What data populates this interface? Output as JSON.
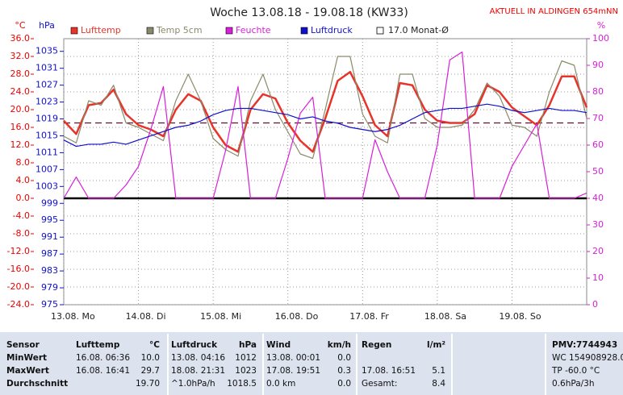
{
  "chart_data": {
    "type": "line",
    "title": "Woche 13.08.18 - 19.08.18 (KW33)",
    "subtitle": "AKTUELL IN ALDINGEN 654mNN",
    "y_label": "°C",
    "y2_label": "hPa",
    "y3_label": "%",
    "x": [
      0,
      4,
      8,
      12,
      16,
      20,
      24,
      28,
      32,
      36,
      40,
      44,
      48,
      52,
      56,
      60,
      64,
      68,
      72,
      76,
      80,
      84,
      88,
      92,
      96,
      100,
      104,
      108,
      112,
      116,
      120,
      124,
      128,
      132,
      136,
      140,
      144,
      148,
      152,
      156,
      160,
      164,
      168
    ],
    "xlim": [
      0,
      168
    ],
    "xticks": [
      {
        "value": 0,
        "label": "13.08. Mo"
      },
      {
        "value": 24,
        "label": "14.08. Di"
      },
      {
        "value": 48,
        "label": "15.08. Mi"
      },
      {
        "value": 72,
        "label": "16.08. Do"
      },
      {
        "value": 96,
        "label": "17.08. Fr"
      },
      {
        "value": 120,
        "label": "18.08. Sa"
      },
      {
        "value": 144,
        "label": "19.08. So"
      }
    ],
    "ylim": [
      -24,
      36
    ],
    "yticks": [
      {
        "value": 36,
        "label": "36.0"
      },
      {
        "value": 32,
        "label": "32.0"
      },
      {
        "value": 28,
        "label": "28.0"
      },
      {
        "value": 24,
        "label": "24.0"
      },
      {
        "value": 20,
        "label": "20.0"
      },
      {
        "value": 16,
        "label": "16.0"
      },
      {
        "value": 12,
        "label": "12.0"
      },
      {
        "value": 8,
        "label": "8.0"
      },
      {
        "value": 4,
        "label": "4.0"
      },
      {
        "value": 0,
        "label": "0.0"
      },
      {
        "value": -4,
        "label": "-4.0"
      },
      {
        "value": -8,
        "label": "-8.0"
      },
      {
        "value": -12,
        "label": "-12.0"
      },
      {
        "value": -16,
        "label": "-16.0"
      },
      {
        "value": -20,
        "label": "-20.0"
      },
      {
        "value": -24,
        "label": "-24.0"
      }
    ],
    "y2lim": [
      975,
      1038
    ],
    "y2ticks": [
      1035,
      1031,
      1027,
      1023,
      1019,
      1015,
      1011,
      1007,
      1003,
      999,
      995,
      991,
      987,
      983,
      979,
      975
    ],
    "y3lim": [
      0,
      100
    ],
    "y3ticks": [
      100,
      90,
      80,
      70,
      60,
      50,
      40,
      30,
      20,
      10,
      0
    ],
    "grid": true,
    "monthly_mean": {
      "label": "17.0 Monat-Ø",
      "value": 17
    },
    "series": [
      {
        "name": "Lufttemp",
        "color": "#e8332a",
        "values": [
          17.5,
          14.5,
          21,
          21.5,
          24.5,
          19,
          16.5,
          15.5,
          14,
          20,
          23.5,
          22,
          16,
          12,
          10.5,
          20,
          23.5,
          22.5,
          17,
          13,
          10.5,
          18,
          26.5,
          28.5,
          23,
          16.5,
          14,
          26,
          25.5,
          20,
          17.5,
          17,
          17,
          19,
          25.5,
          24,
          20.5,
          18.5,
          16.5,
          21,
          27.5,
          27.5,
          20.5
        ]
      },
      {
        "name": "Temp 5cm",
        "color": "#8a8a6a",
        "values": [
          14,
          12.5,
          22,
          21,
          25.5,
          17,
          16,
          14.5,
          13,
          22,
          28,
          22,
          13.5,
          11,
          9.5,
          22,
          28,
          20,
          15,
          10,
          9,
          20,
          32,
          32,
          19,
          14,
          12.5,
          28,
          28,
          18,
          16,
          16,
          16.5,
          20,
          26,
          23,
          16.5,
          16,
          14,
          24,
          31,
          30,
          18
        ]
      },
      {
        "name": "Feuchte",
        "color": "#d81ed8",
        "axis": "y3",
        "values": [
          40,
          48,
          40,
          40,
          40,
          45,
          52,
          66,
          82,
          40,
          40,
          40,
          40,
          58,
          82,
          40,
          40,
          40,
          55,
          72,
          78,
          40,
          40,
          40,
          40,
          62,
          50,
          40,
          40,
          40,
          60,
          92,
          95,
          40,
          40,
          40,
          52,
          60,
          68,
          40,
          40,
          40,
          42
        ]
      },
      {
        "name": "Luftdruck",
        "color": "#1010cc",
        "axis": "y2",
        "values": [
          1014,
          1012.5,
          1013,
          1013,
          1013.5,
          1013,
          1014,
          1015,
          1016,
          1017,
          1017.5,
          1018.5,
          1020,
          1021,
          1021.5,
          1021.5,
          1021,
          1020.5,
          1020,
          1019,
          1019.5,
          1018.5,
          1018,
          1017,
          1016.5,
          1016,
          1016.5,
          1017.5,
          1019,
          1020.5,
          1021,
          1021.5,
          1021.5,
          1022,
          1022.5,
          1022,
          1021,
          1020.5,
          1021,
          1021.5,
          1021,
          1021,
          1020.5
        ]
      }
    ]
  },
  "table": {
    "header": [
      "Sensor",
      "Lufttemp",
      "°C",
      "Luftdruck",
      "hPa",
      "Wind",
      "km/h",
      "Regen",
      "l/m²",
      "PMV:7744943"
    ],
    "rows": [
      [
        "MinWert",
        "16.08.  06:36",
        "10.0",
        "13.08.  04:16",
        "1012",
        "13.08.  00:01",
        "0.0",
        null,
        null,
        "WC 154908928.0"
      ],
      [
        "MaxWert",
        "16.08.  16:41",
        "29.7",
        "18.08.  21:31",
        "1023",
        "17.08.  19:51",
        "0.3",
        "17.08.  16:51",
        "5.1",
        "TP -60.0 °C"
      ],
      [
        "Durchschnitt",
        null,
        "19.70",
        "^1.0hPa/h",
        "1018.5",
        "0.0 km",
        "0.0",
        "Gesamt:",
        "8.4",
        "0.6hPa/3h"
      ]
    ]
  }
}
